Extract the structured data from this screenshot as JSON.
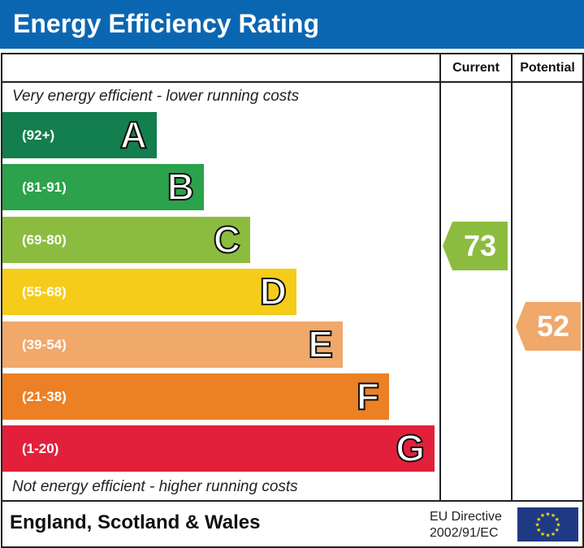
{
  "title": "Energy Efficiency Rating",
  "columns": {
    "current": "Current",
    "potential": "Potential"
  },
  "top_caption": "Very energy efficient - lower running costs",
  "bottom_caption": "Not energy efficient - higher running costs",
  "footer": {
    "region": "England, Scotland & Wales",
    "directive_line1": "EU Directive",
    "directive_line2": "2002/91/EC"
  },
  "chart_data": {
    "type": "bar",
    "title": "Energy Efficiency Rating",
    "bands": [
      {
        "letter": "A",
        "range": "(92+)",
        "color": "#137e4e"
      },
      {
        "letter": "B",
        "range": "(81-91)",
        "color": "#2ba24b"
      },
      {
        "letter": "C",
        "range": "(69-80)",
        "color": "#8cbc3f"
      },
      {
        "letter": "D",
        "range": "(55-68)",
        "color": "#f5cc1a"
      },
      {
        "letter": "E",
        "range": "(39-54)",
        "color": "#f0a86b"
      },
      {
        "letter": "F",
        "range": "(21-38)",
        "color": "#ec8024"
      },
      {
        "letter": "G",
        "range": "(1-20)",
        "color": "#e2203c"
      }
    ],
    "current": {
      "value": 73,
      "band": "C",
      "color": "#8cbc3f"
    },
    "potential": {
      "value": 52,
      "band": "E",
      "color": "#f0a86b"
    }
  }
}
